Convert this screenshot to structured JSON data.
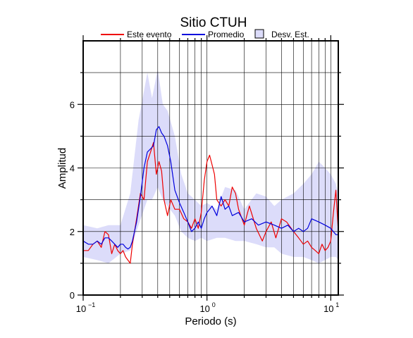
{
  "chart_data": {
    "type": "line",
    "title": "Sitio CTUH",
    "xlabel": "Periodo (s)",
    "ylabel": "Amplitud",
    "x_scale": "log",
    "xlim": [
      0.1,
      11.5
    ],
    "ylim": [
      0,
      8
    ],
    "y_ticks": [
      "0",
      "2",
      "4",
      "6"
    ],
    "x_ticks": [
      {
        "base": "10",
        "exp": "−1",
        "value": 0.1
      },
      {
        "base": "10",
        "exp": "0",
        "value": 1
      },
      {
        "base": "10",
        "exp": "1",
        "value": 10
      }
    ],
    "grid": true,
    "legend_position": "top",
    "colors": {
      "event": "#ee0000",
      "mean": "#0000dd",
      "band": "#dcdcfa",
      "band_edge": "#000000"
    },
    "band": {
      "name": "Desv. Est.",
      "x": [
        0.1,
        0.13,
        0.16,
        0.2,
        0.24,
        0.28,
        0.33,
        0.36,
        0.4,
        0.44,
        0.48,
        0.55,
        0.62,
        0.7,
        0.8,
        0.9,
        1.0,
        1.2,
        1.4,
        1.7,
        2.0,
        2.5,
        3.0,
        3.5,
        4.0,
        5.0,
        6.0,
        7.0,
        8.0,
        9.0,
        10.0,
        11.0,
        11.5
      ],
      "upper": [
        2.2,
        2.1,
        2.2,
        2.2,
        3.2,
        5.5,
        7.0,
        6.2,
        7.1,
        6.0,
        5.8,
        5.0,
        3.8,
        3.2,
        3.0,
        2.8,
        2.9,
        2.7,
        3.4,
        3.3,
        2.7,
        3.2,
        3.1,
        2.8,
        3.0,
        3.2,
        3.5,
        3.8,
        4.2,
        4.0,
        3.8,
        3.5,
        3.2
      ],
      "lower": [
        1.2,
        1.1,
        1.0,
        1.3,
        1.4,
        2.2,
        3.0,
        3.0,
        3.4,
        3.0,
        2.8,
        2.5,
        2.0,
        1.8,
        1.7,
        1.8,
        1.7,
        1.8,
        1.8,
        1.7,
        1.7,
        1.6,
        1.5,
        1.5,
        1.3,
        1.2,
        1.2,
        1.1,
        1.0,
        1.1,
        1.2,
        1.2,
        1.1
      ]
    },
    "series": [
      {
        "name": "Este evento",
        "x": [
          0.1,
          0.11,
          0.12,
          0.13,
          0.14,
          0.15,
          0.16,
          0.17,
          0.18,
          0.19,
          0.2,
          0.21,
          0.22,
          0.23,
          0.24,
          0.25,
          0.27,
          0.29,
          0.31,
          0.33,
          0.35,
          0.37,
          0.39,
          0.41,
          0.43,
          0.45,
          0.48,
          0.51,
          0.55,
          0.6,
          0.65,
          0.7,
          0.75,
          0.8,
          0.85,
          0.9,
          0.95,
          1.0,
          1.05,
          1.1,
          1.15,
          1.2,
          1.3,
          1.4,
          1.5,
          1.6,
          1.7,
          1.8,
          2.0,
          2.2,
          2.5,
          2.8,
          3.0,
          3.3,
          3.6,
          4.0,
          4.4,
          5.0,
          5.5,
          6.0,
          6.5,
          7.0,
          7.5,
          8.0,
          8.5,
          9.0,
          9.5,
          10.0,
          10.5,
          11.0,
          11.5
        ],
        "y": [
          1.4,
          1.4,
          1.6,
          1.7,
          1.5,
          2.0,
          1.9,
          1.3,
          1.6,
          1.4,
          1.3,
          1.4,
          1.2,
          1.1,
          1.0,
          1.6,
          2.4,
          3.2,
          3.0,
          4.2,
          4.5,
          4.8,
          3.8,
          4.2,
          3.9,
          3.0,
          2.5,
          3.0,
          2.7,
          2.7,
          2.4,
          2.3,
          2.1,
          2.4,
          2.1,
          2.6,
          3.6,
          4.2,
          4.4,
          4.1,
          3.8,
          3.0,
          2.8,
          3.0,
          2.8,
          3.4,
          3.2,
          2.7,
          2.2,
          2.8,
          2.1,
          1.7,
          2.0,
          2.3,
          1.8,
          2.4,
          2.3,
          2.0,
          1.8,
          1.6,
          1.7,
          1.5,
          1.4,
          1.3,
          1.6,
          1.4,
          1.5,
          1.7,
          2.6,
          3.3,
          2.0
        ]
      },
      {
        "name": "Promedio",
        "x": [
          0.1,
          0.11,
          0.12,
          0.13,
          0.14,
          0.15,
          0.16,
          0.17,
          0.18,
          0.19,
          0.2,
          0.21,
          0.22,
          0.23,
          0.24,
          0.25,
          0.27,
          0.29,
          0.31,
          0.33,
          0.35,
          0.37,
          0.39,
          0.41,
          0.43,
          0.45,
          0.48,
          0.51,
          0.55,
          0.6,
          0.65,
          0.7,
          0.75,
          0.8,
          0.85,
          0.9,
          0.95,
          1.0,
          1.05,
          1.1,
          1.2,
          1.3,
          1.4,
          1.5,
          1.6,
          1.8,
          2.0,
          2.3,
          2.6,
          3.0,
          3.5,
          4.0,
          4.5,
          5.0,
          5.5,
          6.0,
          6.5,
          7.0,
          8.0,
          9.0,
          10.0,
          11.0,
          11.5
        ],
        "y": [
          1.7,
          1.6,
          1.6,
          1.7,
          1.6,
          1.8,
          1.8,
          1.7,
          1.6,
          1.5,
          1.6,
          1.6,
          1.5,
          1.45,
          1.5,
          1.7,
          2.3,
          3.1,
          4.0,
          4.5,
          4.6,
          4.7,
          5.2,
          5.3,
          5.1,
          5.0,
          4.7,
          4.2,
          3.3,
          2.9,
          2.6,
          2.3,
          2.0,
          2.1,
          2.3,
          2.1,
          2.4,
          2.6,
          2.7,
          2.8,
          2.5,
          3.1,
          2.7,
          2.8,
          2.5,
          2.6,
          2.3,
          2.4,
          2.2,
          2.3,
          2.2,
          2.1,
          2.2,
          2.0,
          2.1,
          2.0,
          2.1,
          2.4,
          2.3,
          2.2,
          2.1,
          1.9,
          1.9
        ]
      }
    ]
  }
}
